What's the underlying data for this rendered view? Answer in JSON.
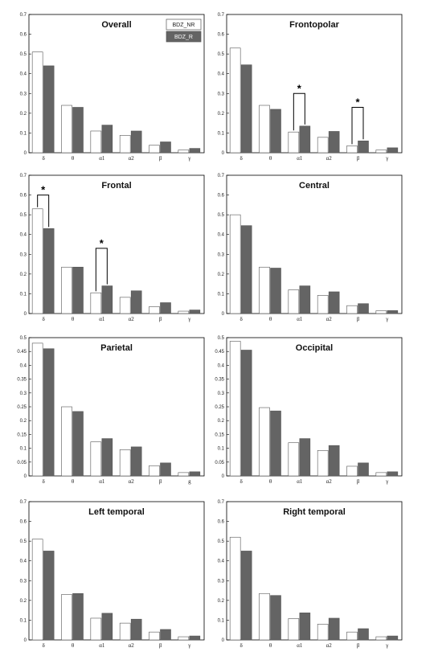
{
  "legend": {
    "entries": [
      {
        "name": "BDZ_NR",
        "color": "#ffffff"
      },
      {
        "name": "BDZ_R",
        "color": "#646464"
      }
    ]
  },
  "colors": {
    "nr": "#ffffff",
    "r": "#646464",
    "axis": "#000000"
  },
  "chart_data": [
    {
      "type": "bar",
      "title": "Overall",
      "categories": [
        "δ",
        "θ",
        "α1",
        "α2",
        "β",
        "γ"
      ],
      "series": [
        {
          "name": "BDZ_NR",
          "values": [
            0.51,
            0.24,
            0.11,
            0.088,
            0.038,
            0.014
          ]
        },
        {
          "name": "BDZ_R",
          "values": [
            0.44,
            0.23,
            0.14,
            0.11,
            0.055,
            0.022
          ]
        }
      ],
      "ylim": [
        0,
        0.7
      ],
      "yticks": [
        "0",
        "0.1",
        "0.2",
        "0.3",
        "0.4",
        "0.5",
        "0.6",
        "0.7"
      ],
      "legend_position": "top-right",
      "significance": []
    },
    {
      "type": "bar",
      "title": "Frontopolar",
      "categories": [
        "δ",
        "θ",
        "α1",
        "α2",
        "β",
        "γ"
      ],
      "series": [
        {
          "name": "BDZ_NR",
          "values": [
            0.53,
            0.24,
            0.105,
            0.078,
            0.035,
            0.014
          ]
        },
        {
          "name": "BDZ_R",
          "values": [
            0.445,
            0.22,
            0.135,
            0.108,
            0.06,
            0.025
          ]
        }
      ],
      "ylim": [
        0,
        0.7
      ],
      "yticks": [
        "0",
        "0.1",
        "0.2",
        "0.3",
        "0.4",
        "0.5",
        "0.6",
        "0.7"
      ],
      "significance": [
        {
          "category": 2,
          "label": "*",
          "level": 0.3
        },
        {
          "category": 4,
          "label": "*",
          "level": 0.23
        }
      ]
    },
    {
      "type": "bar",
      "title": "Frontal",
      "categories": [
        "δ",
        "θ",
        "α1",
        "α2",
        "β",
        "γ"
      ],
      "series": [
        {
          "name": "BDZ_NR",
          "values": [
            0.53,
            0.235,
            0.105,
            0.082,
            0.035,
            0.012
          ]
        },
        {
          "name": "BDZ_R",
          "values": [
            0.43,
            0.235,
            0.14,
            0.115,
            0.055,
            0.018
          ]
        }
      ],
      "ylim": [
        0,
        0.7
      ],
      "yticks": [
        "0",
        "0.1",
        "0.2",
        "0.3",
        "0.4",
        "0.5",
        "0.6",
        "0.7"
      ],
      "significance": [
        {
          "category": 0,
          "label": "*",
          "level": 0.6
        },
        {
          "category": 2,
          "label": "*",
          "level": 0.33
        }
      ]
    },
    {
      "type": "bar",
      "title": "Central",
      "categories": [
        "δ",
        "θ",
        "α1",
        "α2",
        "β",
        "γ"
      ],
      "series": [
        {
          "name": "BDZ_NR",
          "values": [
            0.5,
            0.235,
            0.12,
            0.092,
            0.04,
            0.014
          ]
        },
        {
          "name": "BDZ_R",
          "values": [
            0.445,
            0.23,
            0.14,
            0.11,
            0.05,
            0.015
          ]
        }
      ],
      "ylim": [
        0,
        0.7
      ],
      "yticks": [
        "0",
        "0.1",
        "0.2",
        "0.3",
        "0.4",
        "0.5",
        "0.6",
        "0.7"
      ],
      "significance": []
    },
    {
      "type": "bar",
      "title": "Parietal",
      "categories": [
        "δ",
        "θ",
        "α1",
        "α2",
        "β",
        "g"
      ],
      "series": [
        {
          "name": "BDZ_NR",
          "values": [
            0.48,
            0.25,
            0.123,
            0.095,
            0.037,
            0.012
          ]
        },
        {
          "name": "BDZ_R",
          "values": [
            0.46,
            0.233,
            0.135,
            0.105,
            0.047,
            0.015
          ]
        }
      ],
      "ylim": [
        0,
        0.5
      ],
      "yticks": [
        "0",
        "0.05",
        "0.1",
        "0.15",
        "0.2",
        "0.25",
        "0.3",
        "0.35",
        "0.4",
        "0.45",
        "0.5"
      ],
      "significance": []
    },
    {
      "type": "bar",
      "title": "Occipital",
      "categories": [
        "δ",
        "θ",
        "α1",
        "α2",
        "β",
        "γ"
      ],
      "series": [
        {
          "name": "BDZ_NR",
          "values": [
            0.487,
            0.247,
            0.12,
            0.092,
            0.035,
            0.012
          ]
        },
        {
          "name": "BDZ_R",
          "values": [
            0.455,
            0.235,
            0.135,
            0.11,
            0.047,
            0.015
          ]
        }
      ],
      "ylim": [
        0,
        0.5
      ],
      "yticks": [
        "0",
        "0.05",
        "0.1",
        "0.15",
        "0.2",
        "0.25",
        "0.3",
        "0.35",
        "0.4",
        "0.45",
        "0.5"
      ],
      "significance": []
    },
    {
      "type": "bar",
      "title": "Left temporal",
      "categories": [
        "δ",
        "θ",
        "α1",
        "α2",
        "β",
        "γ"
      ],
      "series": [
        {
          "name": "BDZ_NR",
          "values": [
            0.51,
            0.23,
            0.11,
            0.085,
            0.04,
            0.016
          ]
        },
        {
          "name": "BDZ_R",
          "values": [
            0.45,
            0.235,
            0.135,
            0.105,
            0.053,
            0.02
          ]
        }
      ],
      "ylim": [
        0,
        0.7
      ],
      "yticks": [
        "0",
        "0.1",
        "0.2",
        "0.3",
        "0.4",
        "0.5",
        "0.6",
        "0.7"
      ],
      "significance": []
    },
    {
      "type": "bar",
      "title": "Right temporal",
      "categories": [
        "δ",
        "θ",
        "α1",
        "α2",
        "β",
        "γ"
      ],
      "series": [
        {
          "name": "BDZ_NR",
          "values": [
            0.52,
            0.235,
            0.108,
            0.08,
            0.04,
            0.016
          ]
        },
        {
          "name": "BDZ_R",
          "values": [
            0.45,
            0.225,
            0.137,
            0.11,
            0.057,
            0.02
          ]
        }
      ],
      "ylim": [
        0,
        0.7
      ],
      "yticks": [
        "0",
        "0.1",
        "0.2",
        "0.3",
        "0.4",
        "0.5",
        "0.6",
        "0.7"
      ],
      "significance": []
    }
  ]
}
